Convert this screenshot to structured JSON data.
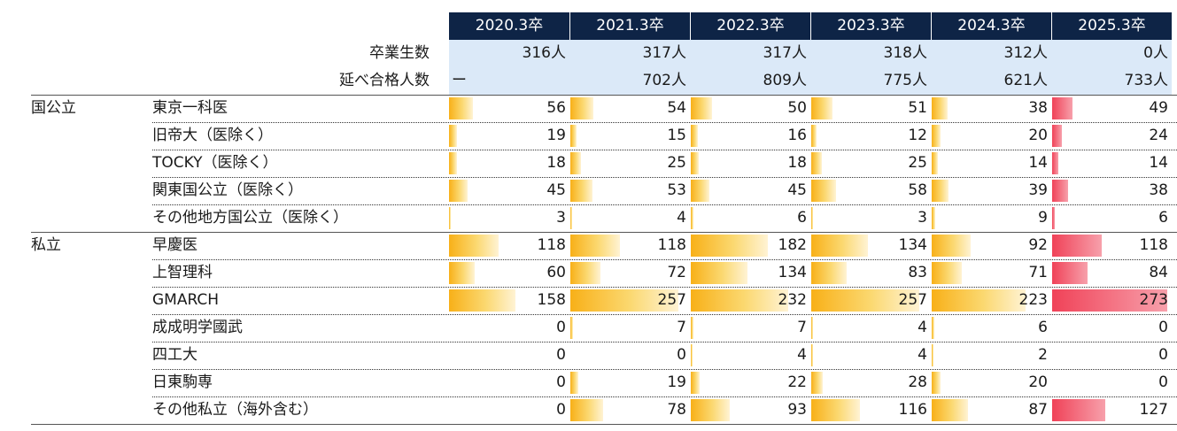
{
  "chart_data": {
    "type": "table",
    "columns": [
      "2020.3卒",
      "2021.3卒",
      "2022.3卒",
      "2023.3卒",
      "2024.3卒",
      "2025.3卒"
    ],
    "meta_rows": [
      {
        "label": "卒業生数",
        "values": [
          "316人",
          "317人",
          "317人",
          "318人",
          "312人",
          "0人"
        ]
      },
      {
        "label": "延べ合格人数",
        "values": [
          "ー",
          "702人",
          "809人",
          "775人",
          "621人",
          "733人"
        ]
      }
    ],
    "groups": [
      {
        "label": "国公立",
        "rows": [
          {
            "name": "東京一科医",
            "values": [
              56,
              54,
              50,
              51,
              38,
              49
            ]
          },
          {
            "name": "旧帝大（医除く）",
            "values": [
              19,
              15,
              16,
              12,
              20,
              24
            ]
          },
          {
            "name": "TOCKY（医除く）",
            "values": [
              18,
              25,
              18,
              25,
              14,
              14
            ]
          },
          {
            "name": "関東国公立（医除く）",
            "values": [
              45,
              53,
              45,
              58,
              39,
              38
            ]
          },
          {
            "name": "その他地方国公立（医除く）",
            "values": [
              3,
              4,
              6,
              3,
              9,
              6
            ]
          }
        ]
      },
      {
        "label": "私立",
        "rows": [
          {
            "name": "早慶医",
            "values": [
              118,
              118,
              182,
              134,
              92,
              118
            ]
          },
          {
            "name": "上智理科",
            "values": [
              60,
              72,
              134,
              83,
              71,
              84
            ]
          },
          {
            "name": "GMARCH",
            "values": [
              158,
              257,
              232,
              257,
              223,
              273
            ]
          },
          {
            "name": "成成明学國武",
            "values": [
              0,
              7,
              7,
              4,
              6,
              0
            ]
          },
          {
            "name": "四工大",
            "values": [
              0,
              0,
              4,
              4,
              2,
              0
            ]
          },
          {
            "name": "日東駒専",
            "values": [
              0,
              19,
              22,
              28,
              20,
              0
            ]
          },
          {
            "name": "その他私立（海外含む）",
            "values": [
              0,
              78,
              93,
              116,
              87,
              127
            ]
          }
        ]
      }
    ],
    "bar_scale_max": 273,
    "colors": {
      "header_bg": "#0e2446",
      "meta_bg": "#dbe9f8",
      "bar_past": "#f8b018",
      "bar_latest": "#f04258"
    }
  }
}
